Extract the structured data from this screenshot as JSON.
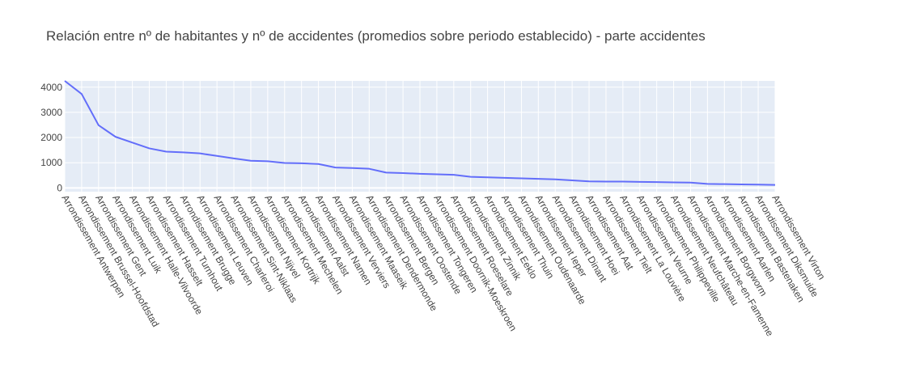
{
  "chart_data": {
    "type": "line",
    "title": "Relación entre nº de habitantes y nº de accidentes (promedios sobre periodo establecido) - parte accidentes",
    "xlabel": "",
    "ylabel": "",
    "ylim": [
      -150,
      4250
    ],
    "yticks": [
      0,
      1000,
      2000,
      3000,
      4000
    ],
    "grid": true,
    "legend": "none",
    "colors": {
      "line": "#636efa",
      "plot_bg": "#e5ecf6",
      "grid": "#ffffff",
      "text": "#444444"
    },
    "categories": [
      "Arrondissement Antwerpen",
      "Arrondissement Brussel-Hoofdstad",
      "Arrondissement Gent",
      "Arrondissement Luik",
      "Arrondissement Halle-Vilvoorde",
      "Arrondissement Hasselt",
      "Arrondissement Turnhout",
      "Arrondissement Brugge",
      "Arrondissement Leuven",
      "Arrondissement Charleroi",
      "Arrondissement Sint-Niklaas",
      "Arrondissement Nijvel",
      "Arrondissement Kortrijk",
      "Arrondissement Mechelen",
      "Arrondissement Aalst",
      "Arrondissement Namen",
      "Arrondissement Verviers",
      "Arrondissement Maaseik",
      "Arrondissement Dendermonde",
      "Arrondissement Bergen",
      "Arrondissement Oostende",
      "Arrondissement Tongeren",
      "Arrondissement Doornik-Moeskroen",
      "Arrondissement Roeselare",
      "Arrondissement Zinnik",
      "Arrondissement Eeklo",
      "Arrondissement Thuin",
      "Arrondissement Oudenaarde",
      "Arrondissement Ieper",
      "Arrondissement Dinant",
      "Arrondissement Hoei",
      "Arrondissement Aat",
      "Arrondissement Tielt",
      "Arrondissement La Louvière",
      "Arrondissement Veurne",
      "Arrondissement Philippeville",
      "Arrondissement Neufchâteau",
      "Arrondissement Marche-en-Famenne",
      "Arrondissement Borgworm",
      "Arrondissement Aarlen",
      "Arrondissement Bastenaken",
      "Arrondissement Diksmuide",
      "Arrondissement Virton"
    ],
    "values": [
      4250,
      3730,
      2490,
      2030,
      1800,
      1570,
      1440,
      1410,
      1370,
      1270,
      1170,
      1080,
      1060,
      990,
      980,
      950,
      810,
      790,
      760,
      610,
      590,
      560,
      540,
      520,
      440,
      420,
      400,
      380,
      360,
      340,
      300,
      260,
      250,
      250,
      240,
      230,
      220,
      210,
      160,
      150,
      140,
      130,
      120
    ]
  }
}
